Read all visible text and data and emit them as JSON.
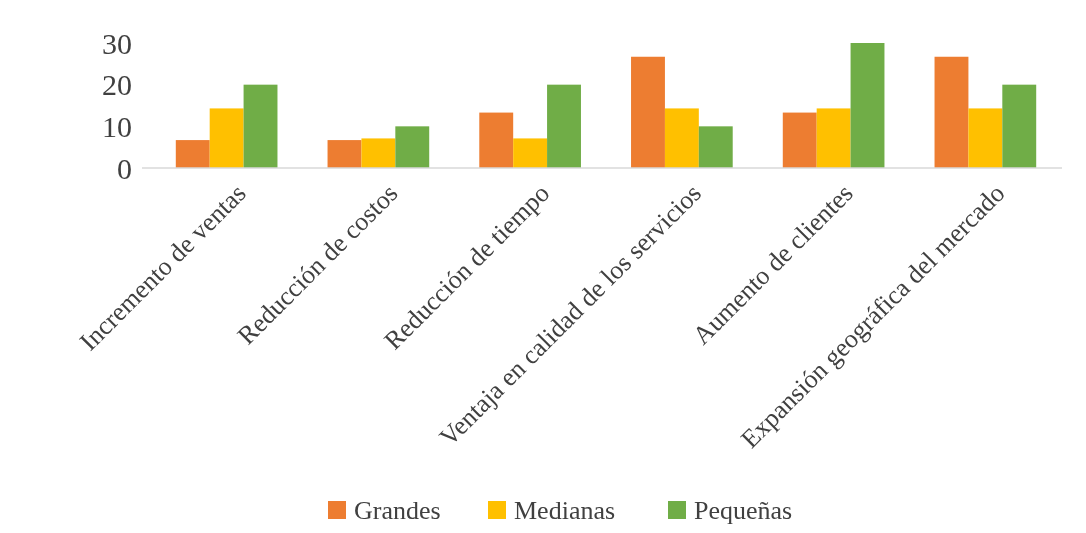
{
  "chart_data": {
    "type": "bar",
    "categories": [
      "Incremento de ventas",
      "Reducción de costos",
      "Reducción de tiempo",
      "Ventaja en calidad de los servicios",
      "Aumento de clientes",
      "Expansión geográfica del mercado"
    ],
    "series": [
      {
        "name": "Grandes",
        "color": "#ed7d31",
        "values": [
          6.7,
          6.7,
          13.3,
          26.7,
          13.3,
          26.7
        ]
      },
      {
        "name": "Medianas",
        "color": "#ffc000",
        "values": [
          14.3,
          7.1,
          7.1,
          14.3,
          14.3,
          14.3
        ]
      },
      {
        "name": "Pequeñas",
        "color": "#70ad47",
        "values": [
          20,
          10,
          20,
          10,
          30,
          20
        ]
      }
    ],
    "ylim": [
      0,
      30
    ],
    "yticks": [
      0,
      10,
      20,
      30
    ],
    "grid": false,
    "legend": "bottom"
  }
}
